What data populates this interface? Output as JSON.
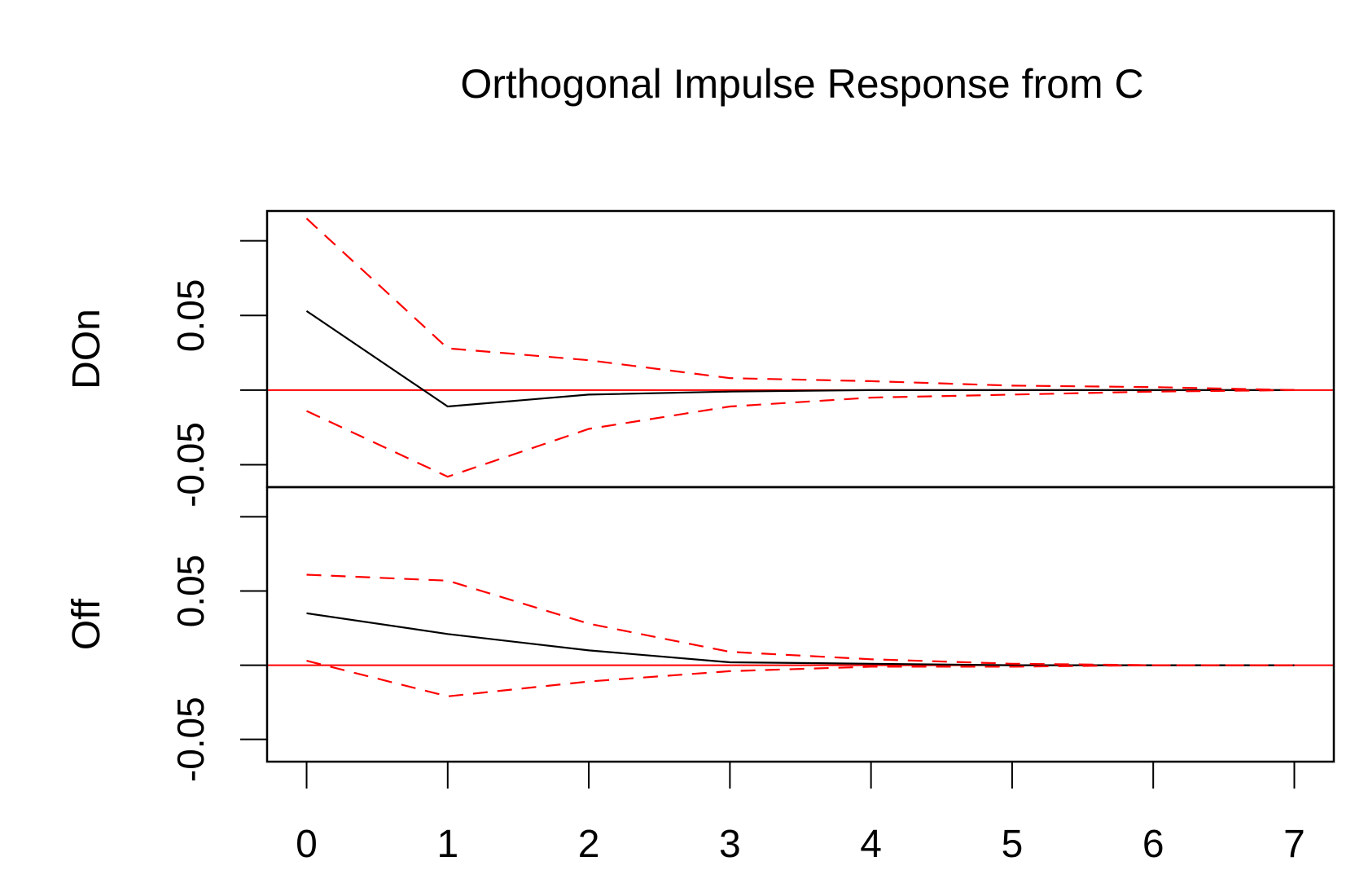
{
  "chart_data": {
    "type": "line",
    "title": "Orthogonal Impulse Response from C",
    "xlim": [
      -0.28,
      7.28
    ],
    "x_ticks": [
      "0",
      "1",
      "2",
      "3",
      "4",
      "5",
      "6",
      "7"
    ],
    "x": [
      0,
      1,
      2,
      3,
      4,
      5,
      6,
      7
    ],
    "colors": {
      "response": "#000000",
      "bounds": "#ff0000",
      "zero_line": "#ff0000",
      "frame": "#000000"
    },
    "panels": [
      {
        "ylabel": "DOn",
        "ylim": [
          -0.065,
          0.12
        ],
        "y_ticks": [
          "-0.05",
          "0.05"
        ],
        "y_tick_values": [
          -0.05,
          0.05
        ],
        "minor_ticks": [
          -0.1,
          0,
          0.1
        ],
        "series": [
          {
            "role": "response",
            "values": [
              0.053,
              -0.011,
              -0.003,
              -0.001,
              0.0,
              0.0,
              0.0,
              0.0
            ]
          },
          {
            "role": "upper",
            "values": [
              0.115,
              0.028,
              0.02,
              0.008,
              0.006,
              0.003,
              0.002,
              0.0
            ]
          },
          {
            "role": "lower",
            "values": [
              -0.014,
              -0.058,
              -0.026,
              -0.011,
              -0.005,
              -0.003,
              -0.001,
              0.0
            ]
          }
        ]
      },
      {
        "ylabel": "Off",
        "ylim": [
          -0.065,
          0.12
        ],
        "y_ticks": [
          "-0.05",
          "0.05"
        ],
        "y_tick_values": [
          -0.05,
          0.05
        ],
        "minor_ticks": [
          -0.1,
          0,
          0.1
        ],
        "series": [
          {
            "role": "response",
            "values": [
              0.035,
              0.021,
              0.01,
              0.002,
              0.001,
              0.0,
              0.0,
              0.0
            ]
          },
          {
            "role": "upper",
            "values": [
              0.061,
              0.057,
              0.028,
              0.009,
              0.004,
              0.001,
              0.0,
              0.0
            ]
          },
          {
            "role": "lower",
            "values": [
              0.003,
              -0.021,
              -0.011,
              -0.004,
              -0.001,
              -0.001,
              0.0,
              0.0
            ]
          }
        ]
      }
    ]
  }
}
